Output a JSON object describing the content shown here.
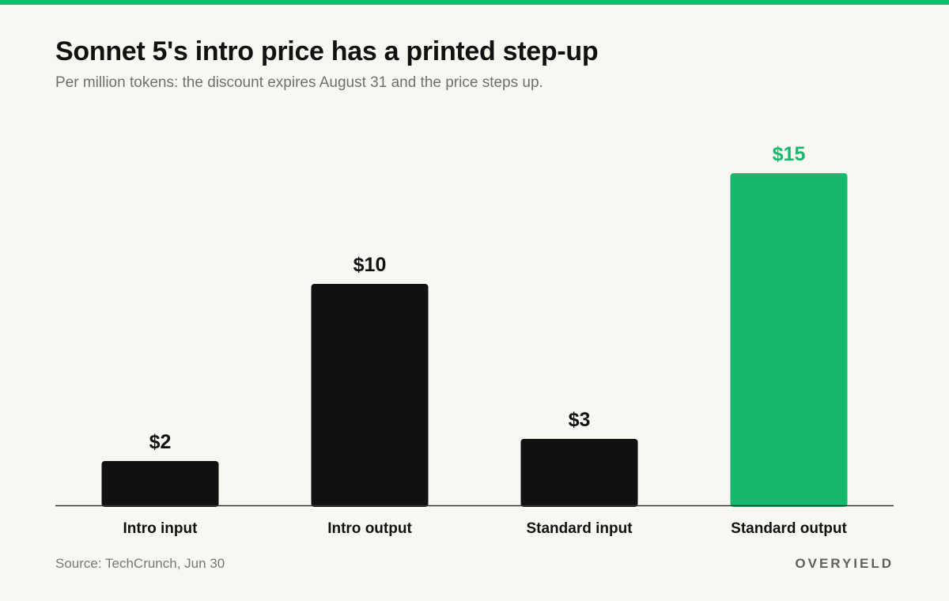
{
  "header": {
    "title": "Sonnet 5's intro price has a printed step-up",
    "subtitle": "Per million tokens: the discount expires August 31 and the price steps up."
  },
  "footer": {
    "source": "Source: TechCrunch, Jun 30",
    "brand": "OVERYIELD"
  },
  "colors": {
    "background": "#f8f8f3",
    "accent": "#16b96c",
    "bar": "#111111",
    "baseline": "#333333"
  },
  "chart_data": {
    "type": "bar",
    "categories": [
      "Intro input",
      "Intro output",
      "Standard input",
      "Standard output"
    ],
    "values": [
      2,
      10,
      3,
      15
    ],
    "value_labels": [
      "$2",
      "$10",
      "$3",
      "$15"
    ],
    "highlight_index": 3,
    "ylim": [
      0,
      15
    ],
    "grid": false,
    "legend": "none",
    "xlabel": "",
    "ylabel": ""
  }
}
